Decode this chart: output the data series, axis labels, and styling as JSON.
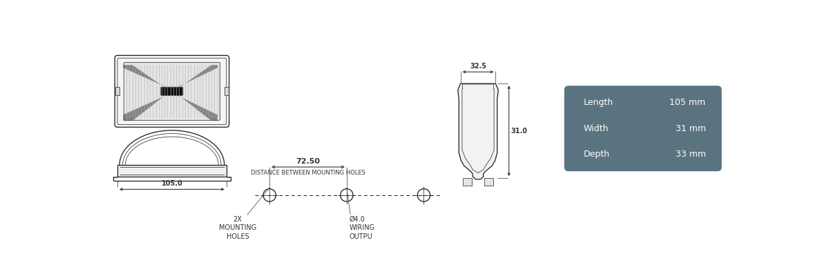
{
  "bg_color": "#ffffff",
  "line_color": "#1a1a1a",
  "dim_color": "#333333",
  "table_bg": "#5a7380",
  "table_text": "#ffffff",
  "table_labels": [
    "Length",
    "Width",
    "Depth"
  ],
  "table_values": [
    "105 mm",
    "31 mm",
    "33 mm"
  ],
  "dim_105": "105.0",
  "dim_72_50": "72.50",
  "dim_32_5": "32.5",
  "dim_31": "31.0",
  "label_dist": "DISTANCE BETWEEN MOUNTING HOLES",
  "label_2x": "2X\nMOUNTING\nHOLES",
  "label_wiring": "Ø4.0\nWIRING\nOUTPU",
  "font_size_dim": 7,
  "font_size_label": 6,
  "font_size_table": 9
}
